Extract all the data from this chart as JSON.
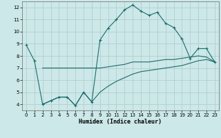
{
  "xlabel": "Humidex (Indice chaleur)",
  "background_color": "#cce8e8",
  "grid_color": "#b0c8c8",
  "line_color": "#1a6b6b",
  "xlim": [
    -0.5,
    23.5
  ],
  "ylim": [
    3.5,
    12.5
  ],
  "xticks": [
    0,
    1,
    2,
    3,
    4,
    5,
    6,
    7,
    8,
    9,
    10,
    11,
    12,
    13,
    14,
    15,
    16,
    17,
    18,
    19,
    20,
    21,
    22,
    23
  ],
  "yticks": [
    4,
    5,
    6,
    7,
    8,
    9,
    10,
    11,
    12
  ],
  "series1_x": [
    0,
    1,
    2,
    3,
    4,
    5,
    6,
    7,
    8,
    9,
    10,
    11,
    12,
    13,
    14,
    15,
    16,
    17,
    18,
    19,
    20,
    21,
    22,
    23
  ],
  "series1_y": [
    8.9,
    7.6,
    4.0,
    4.3,
    4.6,
    4.6,
    3.9,
    5.0,
    4.2,
    9.3,
    10.3,
    11.0,
    11.8,
    12.2,
    11.7,
    11.35,
    11.6,
    10.7,
    10.35,
    9.4,
    7.8,
    8.6,
    8.6,
    7.5
  ],
  "series2_x": [
    2,
    3,
    4,
    5,
    6,
    7,
    8,
    9,
    10,
    11,
    12,
    13,
    14,
    15,
    16,
    17,
    18,
    19,
    20,
    21,
    22,
    23
  ],
  "series2_y": [
    7.0,
    7.0,
    7.0,
    7.0,
    7.0,
    7.0,
    7.0,
    7.0,
    7.1,
    7.2,
    7.3,
    7.5,
    7.5,
    7.5,
    7.6,
    7.7,
    7.7,
    7.8,
    7.9,
    8.0,
    7.9,
    7.5
  ],
  "series3_x": [
    2,
    3,
    4,
    5,
    6,
    7,
    8,
    9,
    10,
    11,
    12,
    13,
    14,
    15,
    16,
    17,
    18,
    19,
    20,
    21,
    22,
    23
  ],
  "series3_y": [
    4.0,
    4.3,
    4.6,
    4.6,
    3.9,
    5.0,
    4.2,
    5.0,
    5.5,
    5.9,
    6.2,
    6.5,
    6.7,
    6.8,
    6.9,
    7.0,
    7.1,
    7.2,
    7.4,
    7.6,
    7.7,
    7.5
  ]
}
